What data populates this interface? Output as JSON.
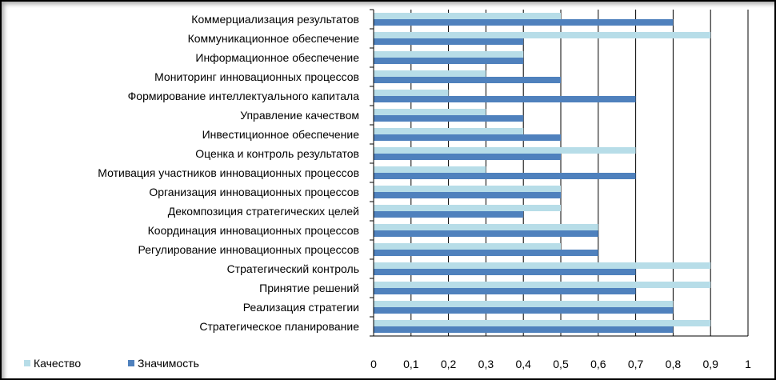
{
  "chart_data": {
    "type": "bar",
    "orientation": "horizontal",
    "categories": [
      "Коммерциализация результатов",
      "Коммуникационное обеспечение",
      "Информационное обеспечение",
      "Мониторинг инновационных процессов",
      "Формирование интеллектуального капитала",
      "Управление качеством",
      "Инвестиционное обеспечение",
      "Оценка и контроль результатов",
      "Мотивация участников инновационных процессов",
      "Организация инновационных процессов",
      "Декомпозиция стратегических целей",
      "Координация инновационных процессов",
      "Регулирование инновационных процессов",
      "Стратегический контроль",
      "Принятие решений",
      "Реализация стратегии",
      "Стратегическое планирование"
    ],
    "series": [
      {
        "name": "Качество",
        "color": "#b7dde8",
        "values": [
          0.5,
          0.9,
          0.4,
          0.3,
          0.2,
          0.3,
          0.4,
          0.7,
          0.3,
          0.5,
          0.5,
          0.6,
          0.5,
          0.9,
          0.9,
          0.8,
          0.9
        ]
      },
      {
        "name": "Значимость",
        "color": "#4f81bd",
        "values": [
          0.8,
          0.4,
          0.4,
          0.5,
          0.7,
          0.4,
          0.5,
          0.5,
          0.7,
          0.5,
          0.4,
          0.6,
          0.6,
          0.7,
          0.7,
          0.8,
          0.8
        ]
      }
    ],
    "xlim": [
      0,
      1
    ],
    "ticks": [
      "0",
      "0,1",
      "0,2",
      "0,3",
      "0,4",
      "0,5",
      "0,6",
      "0,7",
      "0,8",
      "0,9",
      "1"
    ],
    "grid": true,
    "legend": "bottom-left"
  }
}
